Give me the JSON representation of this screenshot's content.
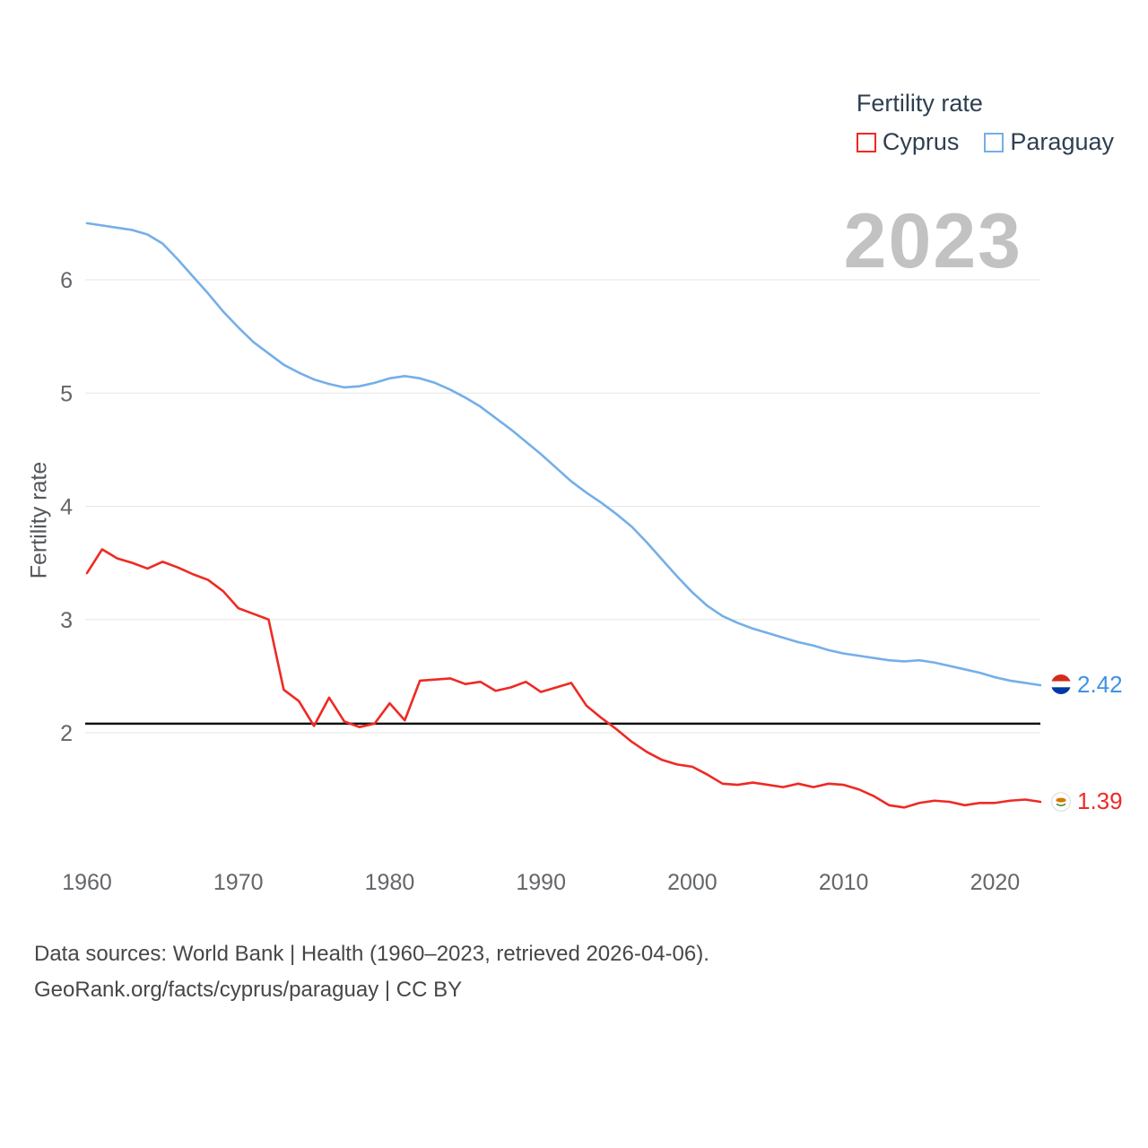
{
  "watermark": "2023",
  "legend": {
    "title": "Fertility rate",
    "items": [
      {
        "label": "Cyprus",
        "color": "#ee2a24",
        "icon": "cyprus-flag-icon"
      },
      {
        "label": "Paraguay",
        "color": "#74afe8",
        "icon": "paraguay-flag-icon"
      }
    ]
  },
  "end_labels": [
    {
      "series": "Paraguay",
      "value": "2.42",
      "color": "#3f92e5",
      "icon": "paraguay-flag-icon"
    },
    {
      "series": "Cyprus",
      "value": "1.39",
      "color": "#ee2a24",
      "icon": "cyprus-flag-icon"
    }
  ],
  "footer": {
    "line1": "Data sources: World Bank | Health (1960–2023, retrieved 2026-04-06).",
    "line2": "GeoRank.org/facts/cyprus/paraguay | CC BY"
  },
  "chart_data": {
    "type": "line",
    "title": "Fertility rate",
    "xlabel": "",
    "ylabel": "Fertility rate",
    "ylim": [
      1.1,
      6.7
    ],
    "yticks": [
      2,
      3,
      4,
      5,
      6
    ],
    "xticks": [
      1960,
      1970,
      1980,
      1990,
      2000,
      2010,
      2020
    ],
    "grid": true,
    "legend_position": "top-right",
    "replacement_line": 2.08,
    "x": [
      1960,
      1961,
      1962,
      1963,
      1964,
      1965,
      1966,
      1967,
      1968,
      1969,
      1970,
      1971,
      1972,
      1973,
      1974,
      1975,
      1976,
      1977,
      1978,
      1979,
      1980,
      1981,
      1982,
      1983,
      1984,
      1985,
      1986,
      1987,
      1988,
      1989,
      1990,
      1991,
      1992,
      1993,
      1994,
      1995,
      1996,
      1997,
      1998,
      1999,
      2000,
      2001,
      2002,
      2003,
      2004,
      2005,
      2006,
      2007,
      2008,
      2009,
      2010,
      2011,
      2012,
      2013,
      2014,
      2015,
      2016,
      2017,
      2018,
      2019,
      2020,
      2021,
      2022,
      2023
    ],
    "series": [
      {
        "name": "Paraguay",
        "color": "#74afe8",
        "values": [
          6.5,
          6.48,
          6.46,
          6.44,
          6.4,
          6.32,
          6.18,
          6.03,
          5.88,
          5.72,
          5.58,
          5.45,
          5.35,
          5.25,
          5.18,
          5.12,
          5.08,
          5.05,
          5.06,
          5.09,
          5.13,
          5.15,
          5.13,
          5.09,
          5.03,
          4.96,
          4.88,
          4.78,
          4.68,
          4.57,
          4.46,
          4.34,
          4.22,
          4.12,
          4.03,
          3.93,
          3.82,
          3.68,
          3.53,
          3.38,
          3.24,
          3.12,
          3.03,
          2.97,
          2.92,
          2.88,
          2.84,
          2.8,
          2.77,
          2.73,
          2.7,
          2.68,
          2.66,
          2.64,
          2.63,
          2.64,
          2.62,
          2.59,
          2.56,
          2.53,
          2.49,
          2.46,
          2.44,
          2.42
        ]
      },
      {
        "name": "Cyprus",
        "color": "#ee2a24",
        "values": [
          3.41,
          3.62,
          3.54,
          3.5,
          3.45,
          3.51,
          3.46,
          3.4,
          3.35,
          3.25,
          3.1,
          3.05,
          3.0,
          2.38,
          2.28,
          2.06,
          2.31,
          2.1,
          2.05,
          2.08,
          2.26,
          2.11,
          2.46,
          2.47,
          2.48,
          2.43,
          2.45,
          2.37,
          2.4,
          2.45,
          2.36,
          2.4,
          2.44,
          2.24,
          2.13,
          2.03,
          1.92,
          1.83,
          1.76,
          1.72,
          1.7,
          1.63,
          1.55,
          1.54,
          1.56,
          1.54,
          1.52,
          1.55,
          1.52,
          1.55,
          1.54,
          1.5,
          1.44,
          1.36,
          1.34,
          1.38,
          1.4,
          1.39,
          1.36,
          1.38,
          1.38,
          1.4,
          1.41,
          1.39
        ]
      }
    ]
  }
}
